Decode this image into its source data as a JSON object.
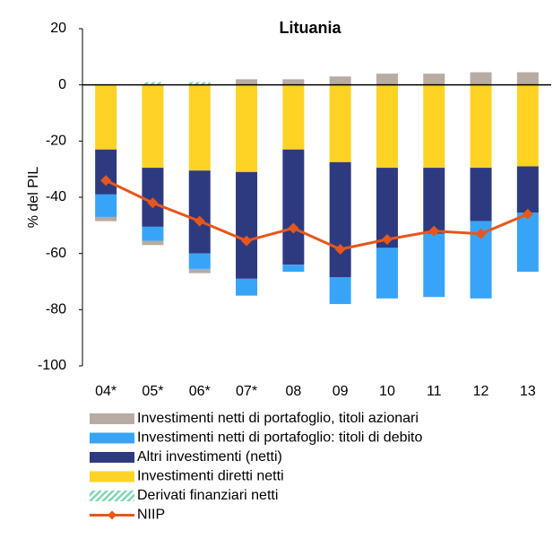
{
  "chart_data": {
    "type": "stacked_bar_line",
    "title": "Lituania",
    "y_label": "% del PIL",
    "categories": [
      "04*",
      "05*",
      "06*",
      "07*",
      "08",
      "09",
      "10",
      "11",
      "12",
      "13"
    ],
    "ylim": [
      -100,
      20
    ],
    "yticks": [
      -100,
      -80,
      -60,
      -40,
      -20,
      0,
      20
    ],
    "series": [
      {
        "name": "Investimenti netti di portafoglio, titoli azionari",
        "color": "#b7aba3",
        "kind": "bar",
        "values": [
          -1.5,
          -1.5,
          -1.5,
          2,
          2,
          3,
          4,
          4,
          4.5,
          4.5
        ]
      },
      {
        "name": "Investimenti netti di portafoglio: titoli di debito",
        "color": "#38a4f8",
        "kind": "bar",
        "values": [
          -8,
          -5,
          -5.5,
          -6,
          -2.5,
          -9.5,
          -18,
          -22.5,
          -27.5,
          -21
        ]
      },
      {
        "name": "Altri investimenti (netti)",
        "color": "#2e3a80",
        "kind": "bar",
        "values": [
          -16,
          -21,
          -29.5,
          -38,
          -41,
          -41,
          -28.5,
          -23.5,
          -19,
          -16.5
        ]
      },
      {
        "name": "Investimenti diretti netti",
        "color": "#ffd324",
        "kind": "bar",
        "values": [
          -23,
          -29.5,
          -30.5,
          -31,
          -23,
          -27.5,
          -29.5,
          -29.5,
          -29.5,
          -29
        ]
      },
      {
        "name": "Derivati finanziari netti",
        "color": "#7fd6b4",
        "kind": "bar",
        "values": [
          0,
          1,
          1,
          0,
          0,
          0,
          0,
          0,
          0,
          0
        ]
      },
      {
        "name": "NIIP",
        "color": "#e8561b",
        "kind": "line",
        "values": [
          -34,
          -42,
          -48.5,
          -55.5,
          -51,
          -58.5,
          -55,
          -52,
          -53,
          -46
        ]
      }
    ]
  }
}
